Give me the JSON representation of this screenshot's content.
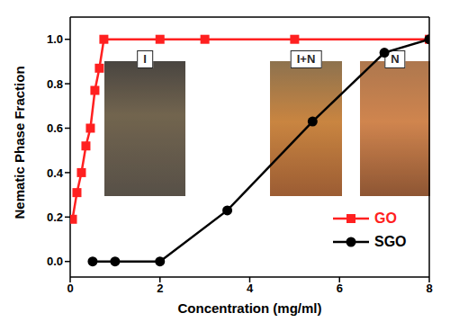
{
  "chart_data": {
    "type": "line",
    "x_label": "Concentration (mg/ml)",
    "y_label": "Nematic Phase Fraction",
    "xlim": [
      0,
      8
    ],
    "xticks": [
      0,
      2,
      4,
      6,
      8
    ],
    "ylim": [
      -0.07,
      1.1
    ],
    "yticks": [
      {
        "value": 0,
        "label": "0.0"
      },
      {
        "value": 0.2,
        "label": "0.2"
      },
      {
        "value": 0.4,
        "label": "0.4"
      },
      {
        "value": 0.6,
        "label": "0.6"
      },
      {
        "value": 0.8,
        "label": "0.8"
      },
      {
        "value": 1,
        "label": "1.0"
      }
    ],
    "legend": "lower right",
    "annotations": [
      "I",
      "I+N",
      "N"
    ],
    "series": [
      {
        "name": "GO",
        "color": "#ff2020",
        "marker": "square",
        "x": [
          0.05,
          0.15,
          0.25,
          0.35,
          0.45,
          0.55,
          0.65,
          0.75,
          2,
          3,
          5,
          8
        ],
        "values": [
          0.19,
          0.31,
          0.4,
          0.52,
          0.6,
          0.77,
          0.87,
          1.0,
          1.0,
          1.0,
          1.0,
          1.0
        ]
      },
      {
        "name": "SGO",
        "color": "#000000",
        "marker": "circle",
        "x": [
          0.5,
          1,
          2,
          3.5,
          5.4,
          7,
          8
        ],
        "values": [
          0,
          0,
          0,
          0.23,
          0.63,
          0.94,
          1.0
        ]
      }
    ]
  }
}
